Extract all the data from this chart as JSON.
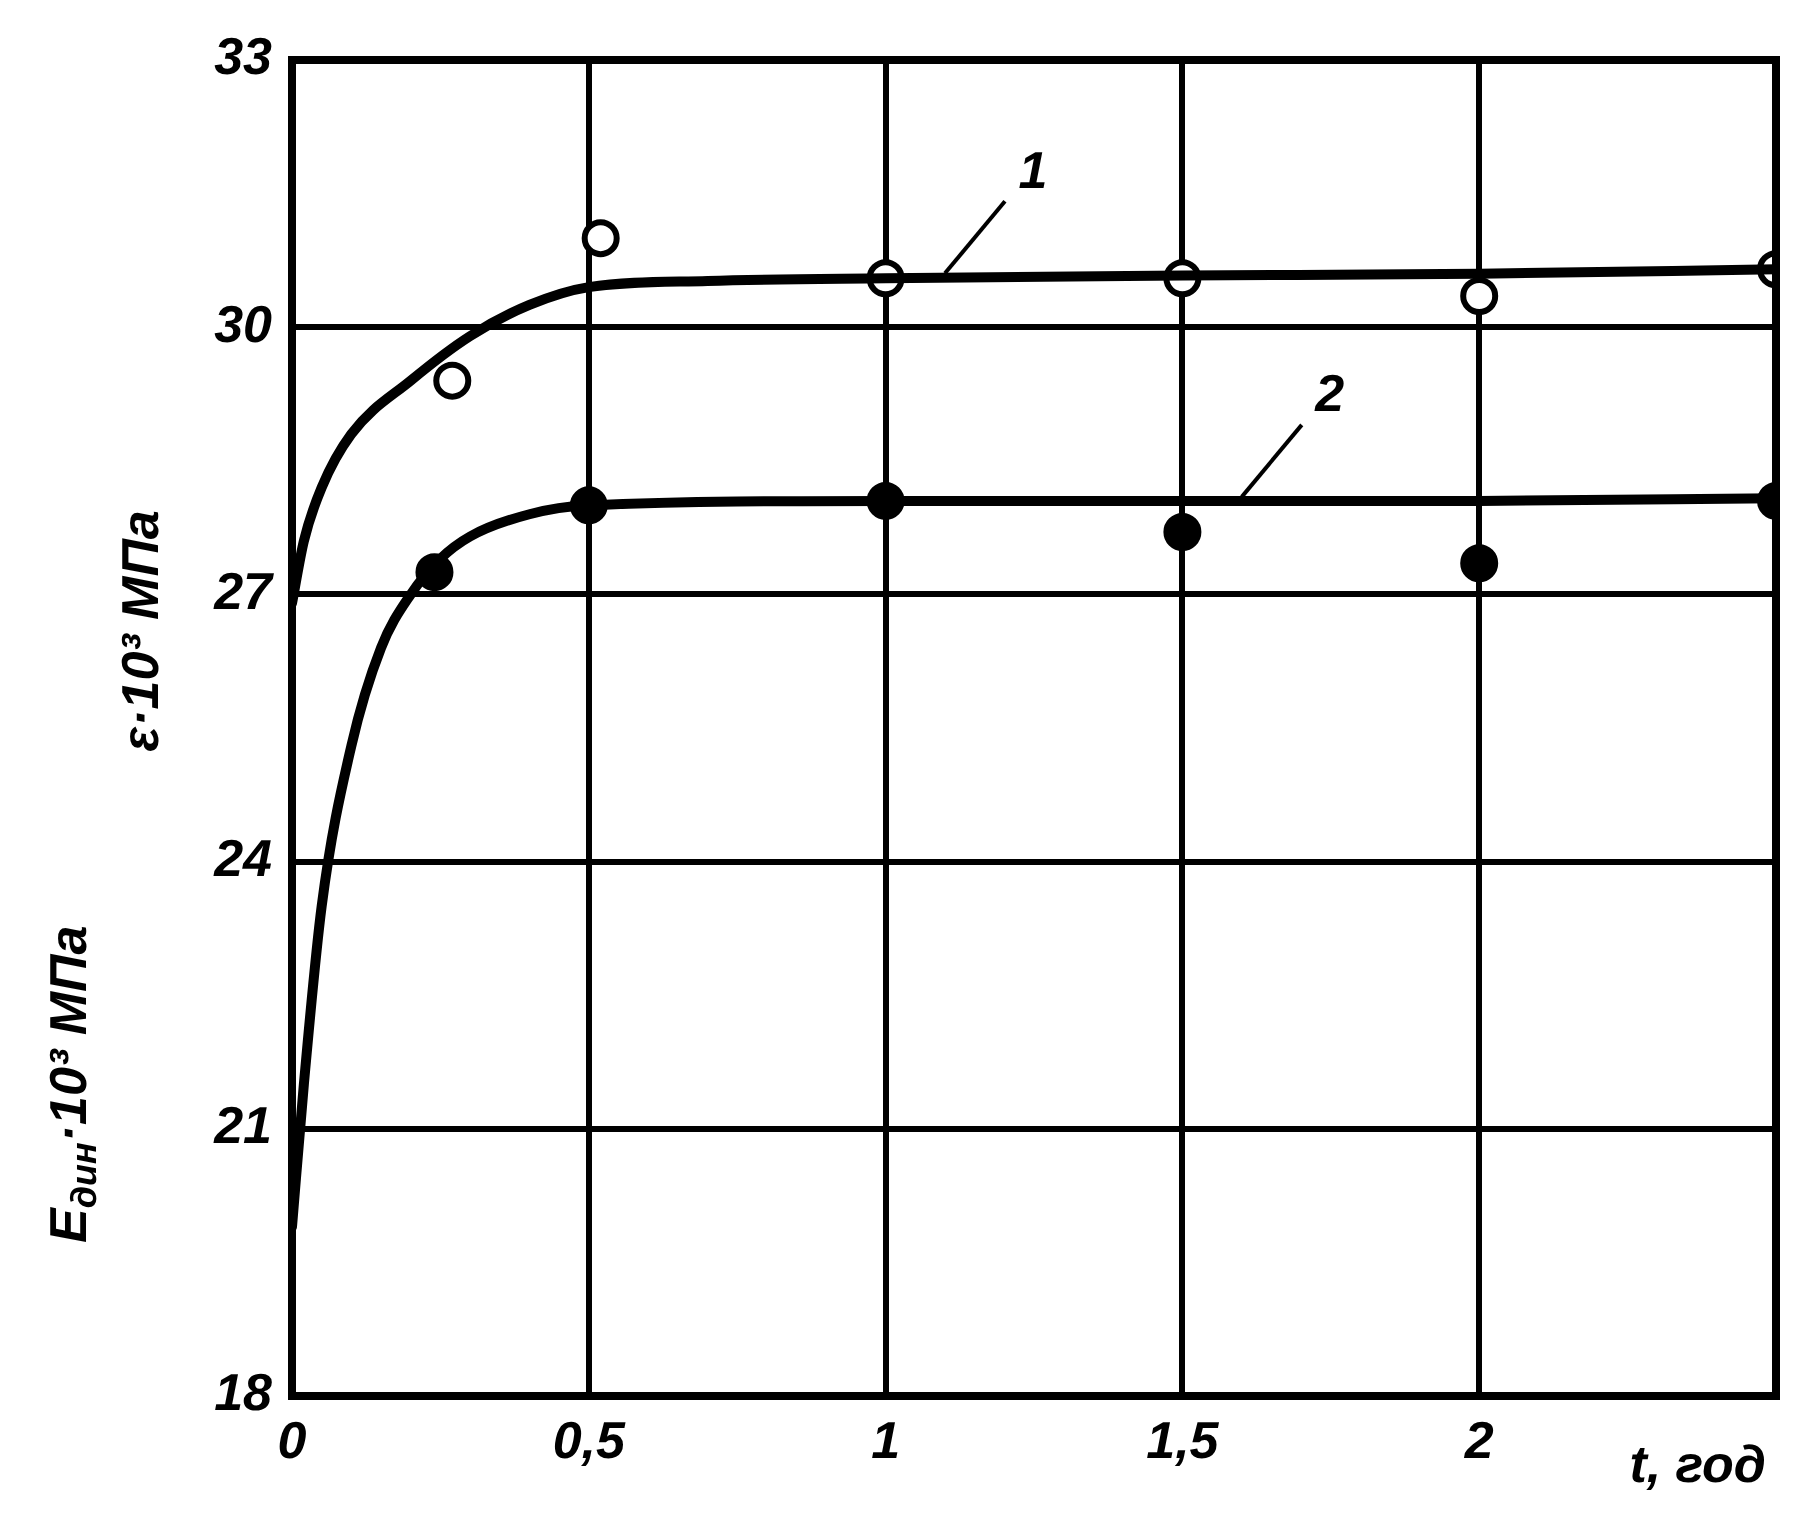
{
  "chart_data": {
    "type": "line",
    "xlabel": "t, год",
    "ylabel": "E$_{дин}$·10³ МПа",
    "xlim": [
      0,
      2.5
    ],
    "xticks": [
      0,
      {
        "value": 0.5,
        "label": "0,5"
      },
      1,
      {
        "value": 1.5,
        "label": "1,5"
      },
      2,
      {
        "value": 2.5,
        "label": null
      }
    ],
    "ylim": [
      18,
      33
    ],
    "yticks": [
      18,
      21,
      24,
      27,
      30,
      33
    ],
    "grid": true,
    "legend": false,
    "line_style": "solid",
    "series": [
      {
        "color": "#000000",
        "marker": "none",
        "x": [
          0,
          0.02,
          0.05,
          0.1,
          0.2,
          0.3,
          0.4,
          0.5,
          0.7,
          1,
          1.5,
          2,
          2.5
        ],
        "values": [
          26.9,
          27.6,
          28.2,
          28.8,
          29.4,
          29.9,
          30.25,
          30.45,
          30.52,
          30.55,
          30.58,
          30.6,
          30.65
        ]
      },
      {
        "color": "#000000",
        "marker": "none",
        "x": [
          0,
          0.02,
          0.05,
          0.1,
          0.15,
          0.2,
          0.25,
          0.3,
          0.4,
          0.5,
          1,
          1.5,
          2,
          2.5
        ],
        "values": [
          19.9,
          21.5,
          23.5,
          25.3,
          26.4,
          27.0,
          27.4,
          27.65,
          27.9,
          28.0,
          28.05,
          28.05,
          28.05,
          28.08
        ]
      },
      {
        "type": "scatter",
        "color": "#ffffff",
        "marker": "circle",
        "x": [
          0.27,
          0.52,
          1,
          1.5,
          2,
          2.5
        ],
        "values": [
          29.4,
          31.0,
          30.55,
          30.55,
          30.35,
          30.65
        ]
      },
      {
        "type": "scatter",
        "color": "#000000",
        "marker": "circle",
        "x": [
          0.24,
          0.5,
          1,
          1.5,
          2,
          2.5
        ],
        "values": [
          27.25,
          28.0,
          28.05,
          27.7,
          27.35,
          28.05
        ]
      }
    ],
    "annotations": [
      "ε·10³ МПа",
      {
        "text": "1",
        "x": 1.1,
        "y": 30.56
      },
      {
        "text": "2",
        "x": 1.6,
        "y": 28.05
      }
    ]
  }
}
